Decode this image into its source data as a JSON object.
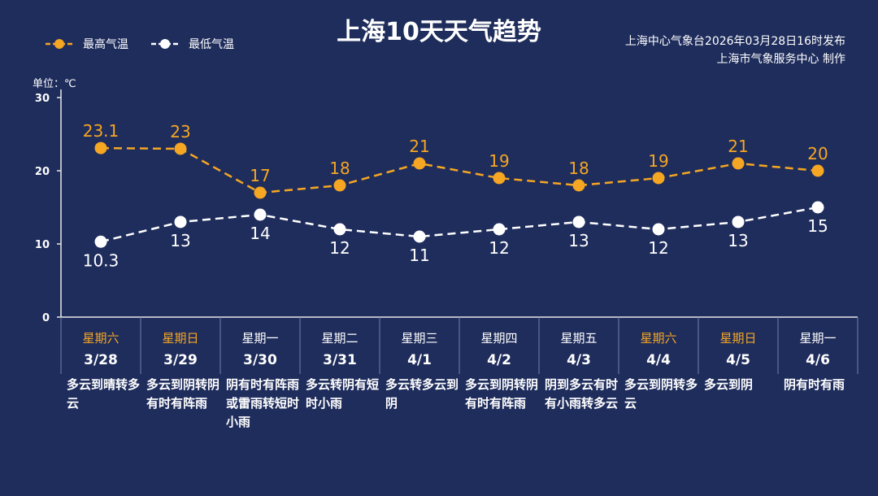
{
  "title": "上海10天天气趋势",
  "legend": {
    "high_label": "最高气温",
    "low_label": "最低气温"
  },
  "source": {
    "line1": "上海中心气象台2026年03月28日16时发布",
    "line2": "上海市气象服务中心  制作"
  },
  "unit_label": "单位：℃",
  "colors": {
    "background": "#1f2d5c",
    "high": "#f5a623",
    "low": "#ffffff",
    "weekend": "#f5a623",
    "weekday": "#ffffff",
    "axis": "#e8e8e8"
  },
  "chart_data": {
    "type": "line",
    "ylim": [
      0,
      30
    ],
    "yticks": [
      "0",
      "10",
      "20",
      "30"
    ],
    "categories": [
      "3/28",
      "3/29",
      "3/30",
      "3/31",
      "4/1",
      "4/2",
      "4/3",
      "4/4",
      "4/5",
      "4/6"
    ],
    "series": [
      {
        "name": "最高气温",
        "values": [
          23.1,
          23,
          17,
          18,
          21,
          19,
          18,
          19,
          21,
          20
        ],
        "labels": [
          "23.1",
          "23",
          "17",
          "18",
          "21",
          "19",
          "18",
          "19",
          "21",
          "20"
        ]
      },
      {
        "name": "最低气温",
        "values": [
          10.3,
          13,
          14,
          12,
          11,
          12,
          13,
          12,
          13,
          15
        ],
        "labels": [
          "10.3",
          "13",
          "14",
          "12",
          "11",
          "12",
          "13",
          "12",
          "13",
          "15"
        ]
      }
    ]
  },
  "days": [
    {
      "weekday": "星期六",
      "date": "3/28",
      "weekend": true,
      "desc": "多云到晴转多云"
    },
    {
      "weekday": "星期日",
      "date": "3/29",
      "weekend": true,
      "desc": "多云到阴转阴有时有阵雨"
    },
    {
      "weekday": "星期一",
      "date": "3/30",
      "weekend": false,
      "desc": "阴有时有阵雨或雷雨转短时小雨"
    },
    {
      "weekday": "星期二",
      "date": "3/31",
      "weekend": false,
      "desc": "多云转阴有短时小雨"
    },
    {
      "weekday": "星期三",
      "date": "4/1",
      "weekend": false,
      "desc": "多云转多云到阴"
    },
    {
      "weekday": "星期四",
      "date": "4/2",
      "weekend": false,
      "desc": "多云到阴转阴有时有阵雨"
    },
    {
      "weekday": "星期五",
      "date": "4/3",
      "weekend": false,
      "desc": "阴到多云有时有小雨转多云"
    },
    {
      "weekday": "星期六",
      "date": "4/4",
      "weekend": true,
      "desc": "多云到阴转多云"
    },
    {
      "weekday": "星期日",
      "date": "4/5",
      "weekend": true,
      "desc": "多云到阴"
    },
    {
      "weekday": "星期一",
      "date": "4/6",
      "weekend": false,
      "desc": "阴有时有雨"
    }
  ]
}
